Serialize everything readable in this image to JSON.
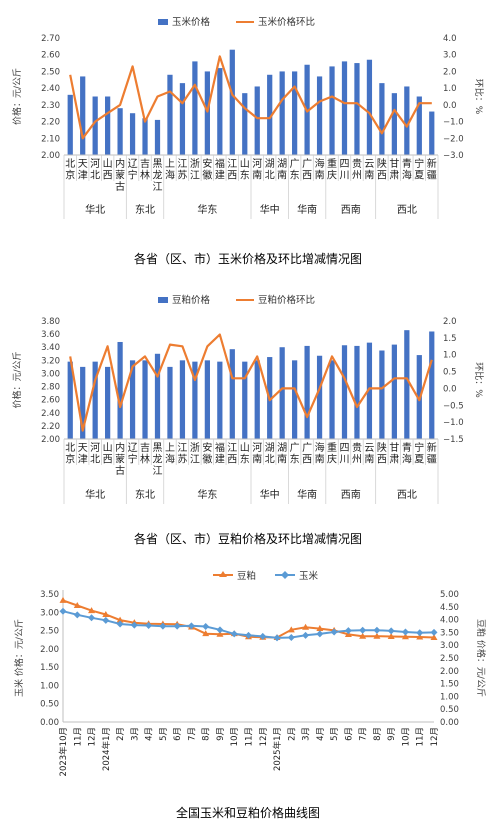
{
  "chart_data": [
    {
      "type": "bar",
      "title": "玉米价格",
      "caption": "各省（区、市）玉米价格及环比增减情况图",
      "legend": [
        "玉米价格",
        "玉米价格环比"
      ],
      "legend_position": "top",
      "ylabel_left": "价格：元/公斤",
      "ylabel_right": "环比：%",
      "ylim_left": [
        2.0,
        2.7
      ],
      "yticks_left": [
        "2.70",
        "2.60",
        "2.50",
        "2.40",
        "2.30",
        "2.20",
        "2.10",
        "2.00"
      ],
      "ylim_right": [
        -3.0,
        4.0
      ],
      "yticks_right": [
        "4.0",
        "3.0",
        "2.0",
        "1.0",
        "0.0",
        "−1.0",
        "−2.0",
        "−3.0"
      ],
      "categories": [
        "北京",
        "天津",
        "河北",
        "山西",
        "内蒙古",
        "辽宁",
        "吉林",
        "黑龙江",
        "上海",
        "江苏",
        "浙江",
        "安徽",
        "福建",
        "江西",
        "山东",
        "河南",
        "湖北",
        "湖南",
        "广东",
        "广西",
        "海南",
        "重庆",
        "四川",
        "贵州",
        "云南",
        "陕西",
        "甘肃",
        "青海",
        "宁夏",
        "新疆"
      ],
      "groups": [
        {
          "name": "华北",
          "span": 5
        },
        {
          "name": "东北",
          "span": 3
        },
        {
          "name": "华东",
          "span": 7
        },
        {
          "name": "华中",
          "span": 3
        },
        {
          "name": "华南",
          "span": 3
        },
        {
          "name": "西南",
          "span": 4
        },
        {
          "name": "西北",
          "span": 5
        }
      ],
      "series": [
        {
          "name": "玉米价格",
          "type": "bar",
          "axis": "left",
          "values": [
            2.36,
            2.47,
            2.35,
            2.35,
            2.28,
            2.25,
            2.22,
            2.21,
            2.48,
            2.43,
            2.56,
            2.5,
            2.52,
            2.63,
            2.37,
            2.41,
            2.48,
            2.5,
            2.5,
            2.54,
            2.47,
            2.53,
            2.56,
            2.55,
            2.57,
            2.43,
            2.37,
            2.41,
            2.35,
            2.26
          ]
        },
        {
          "name": "玉米价格环比",
          "type": "line",
          "axis": "right",
          "values": [
            1.8,
            -2.0,
            -1.0,
            -0.5,
            0.0,
            2.3,
            -1.0,
            0.5,
            0.8,
            0.1,
            1.2,
            -0.4,
            2.9,
            0.6,
            -0.2,
            -0.8,
            -0.8,
            0.3,
            1.1,
            -0.4,
            0.2,
            0.5,
            0.1,
            0.1,
            -0.5,
            -1.7,
            -0.3,
            -1.3,
            0.1,
            0.1
          ]
        }
      ]
    },
    {
      "type": "bar",
      "title": "豆粕价格",
      "caption": "各省（区、市）豆粕价格及环比增减情况图",
      "legend": [
        "豆粕价格",
        "豆粕价格环比"
      ],
      "legend_position": "top",
      "ylabel_left": "价格：元/公斤",
      "ylabel_right": "环比：%",
      "ylim_left": [
        2.0,
        3.8
      ],
      "yticks_left": [
        "3.80",
        "3.60",
        "3.40",
        "3.20",
        "3.00",
        "2.80",
        "2.60",
        "2.40",
        "2.20",
        "2.00"
      ],
      "ylim_right": [
        -1.5,
        2.0
      ],
      "yticks_right": [
        "2.0",
        "1.5",
        "1.0",
        "0.5",
        "0.0",
        "−0.5",
        "−1.0",
        "−1.5"
      ],
      "categories": [
        "北京",
        "天津",
        "河北",
        "山西",
        "内蒙古",
        "辽宁",
        "吉林",
        "黑龙江",
        "上海",
        "江苏",
        "浙江",
        "安徽",
        "福建",
        "江西",
        "山东",
        "河南",
        "湖北",
        "湖南",
        "广东",
        "广西",
        "海南",
        "重庆",
        "四川",
        "贵州",
        "云南",
        "陕西",
        "甘肃",
        "青海",
        "宁夏",
        "新疆"
      ],
      "groups": [
        {
          "name": "华北",
          "span": 5
        },
        {
          "name": "东北",
          "span": 3
        },
        {
          "name": "华东",
          "span": 7
        },
        {
          "name": "华中",
          "span": 3
        },
        {
          "name": "华南",
          "span": 3
        },
        {
          "name": "西南",
          "span": 4
        },
        {
          "name": "西北",
          "span": 5
        }
      ],
      "series": [
        {
          "name": "豆粕价格",
          "type": "bar",
          "axis": "left",
          "values": [
            3.18,
            3.1,
            3.18,
            3.1,
            3.48,
            3.2,
            3.2,
            3.3,
            3.1,
            3.2,
            3.18,
            3.2,
            3.18,
            3.37,
            3.18,
            3.2,
            3.25,
            3.4,
            3.2,
            3.42,
            3.27,
            3.2,
            3.43,
            3.42,
            3.47,
            3.35,
            3.44,
            3.66,
            3.28,
            3.64
          ]
        },
        {
          "name": "豆粕价格环比",
          "type": "line",
          "axis": "right",
          "values": [
            0.95,
            -1.25,
            0.25,
            1.25,
            -0.55,
            0.65,
            0.95,
            0.35,
            1.3,
            1.25,
            0.25,
            1.25,
            1.6,
            0.3,
            0.3,
            0.95,
            -0.35,
            0.0,
            0.0,
            -0.85,
            0.0,
            0.95,
            0.3,
            -0.55,
            0.0,
            0.0,
            0.3,
            0.3,
            -0.35,
            0.85
          ]
        }
      ]
    },
    {
      "type": "line",
      "title": "全国玉米和豆粕价格曲线图",
      "caption": "全国玉米和豆粕价格曲线图",
      "legend": [
        "豆粕",
        "玉米"
      ],
      "legend_position": "top",
      "ylabel_left": "玉米 价格：元/公斤",
      "ylabel_right": "豆粕 价格：元/公斤",
      "ylim_left": [
        0.0,
        3.5
      ],
      "yticks_left": [
        "3.50",
        "3.00",
        "2.50",
        "2.00",
        "1.50",
        "1.00",
        "0.50",
        "0.00"
      ],
      "ylim_right": [
        0.0,
        5.0
      ],
      "yticks_right": [
        "5.00",
        "4.50",
        "4.00",
        "3.50",
        "3.00",
        "2.50",
        "2.00",
        "1.50",
        "1.00",
        "0.50",
        "0.00"
      ],
      "x": [
        "2023年10月",
        "11月",
        "12月",
        "2024年1月",
        "2月",
        "3月",
        "4月",
        "5月",
        "6月",
        "7月",
        "8月",
        "9月",
        "10月",
        "11月",
        "12月",
        "2025年1月",
        "2月",
        "3月",
        "4月",
        "5月",
        "6月",
        "7月",
        "8月",
        "9月",
        "10月",
        "11月",
        "12月"
      ],
      "series": [
        {
          "name": "豆粕",
          "axis": "right",
          "values": [
            4.75,
            4.55,
            4.35,
            4.2,
            3.98,
            3.88,
            3.84,
            3.83,
            3.82,
            3.71,
            3.45,
            3.43,
            3.45,
            3.33,
            3.31,
            3.3,
            3.6,
            3.7,
            3.65,
            3.58,
            3.42,
            3.35,
            3.35,
            3.34,
            3.33,
            3.32,
            3.3
          ]
        },
        {
          "name": "玉米",
          "axis": "left",
          "values": [
            3.03,
            2.93,
            2.85,
            2.78,
            2.68,
            2.65,
            2.64,
            2.62,
            2.62,
            2.63,
            2.61,
            2.52,
            2.41,
            2.37,
            2.34,
            2.3,
            2.31,
            2.37,
            2.41,
            2.46,
            2.5,
            2.51,
            2.51,
            2.49,
            2.46,
            2.44,
            2.45
          ]
        }
      ]
    }
  ],
  "colors": {
    "bar": "#4472c4",
    "line": "#ed7d31",
    "soy_line": "#ed7d31",
    "corn_line": "#5b9bd5",
    "axis_text": "#404040",
    "grid": "#d9d9d9"
  }
}
